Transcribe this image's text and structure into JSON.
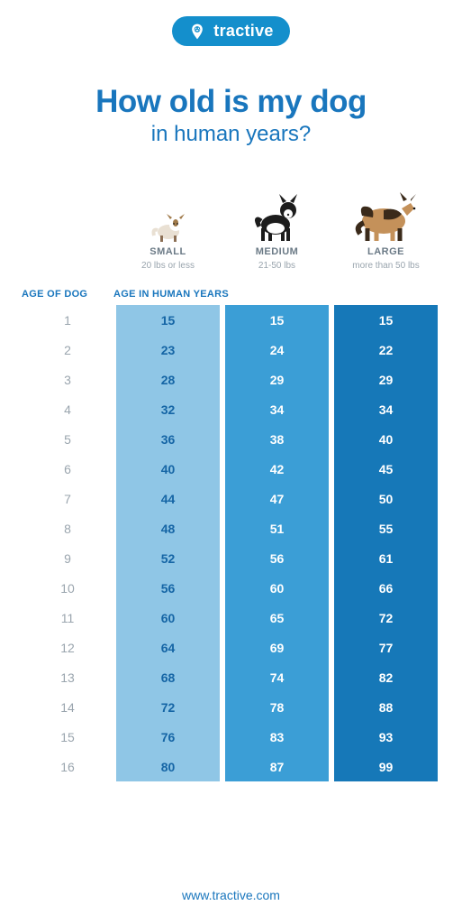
{
  "brand": {
    "name": "tractive",
    "bg": "#148fcc",
    "color": "#ffffff"
  },
  "headline": {
    "line1": "How old is my dog",
    "line2": "in human years?",
    "color": "#1976bd"
  },
  "sizes": [
    {
      "label": "SMALL",
      "sub": "20 lbs or less"
    },
    {
      "label": "MEDIUM",
      "sub": "21-50 lbs"
    },
    {
      "label": "LARGE",
      "sub": "more than 50 lbs"
    }
  ],
  "size_label_color": "#6b7a86",
  "size_sub_color": "#9aa5ae",
  "table": {
    "header_age": "AGE OF DOG",
    "header_human": "AGE IN HUMAN YEARS",
    "header_color": "#1976bd",
    "age_label_color": "#9aa5ae",
    "columns": [
      {
        "bg": "#8fc6e6",
        "text": "#1565a5"
      },
      {
        "bg": "#3b9ed6",
        "text": "#ffffff"
      },
      {
        "bg": "#1678b8",
        "text": "#ffffff"
      }
    ],
    "rows": [
      {
        "age": 1,
        "vals": [
          15,
          15,
          15
        ]
      },
      {
        "age": 2,
        "vals": [
          23,
          24,
          22
        ]
      },
      {
        "age": 3,
        "vals": [
          28,
          29,
          29
        ]
      },
      {
        "age": 4,
        "vals": [
          32,
          34,
          34
        ]
      },
      {
        "age": 5,
        "vals": [
          36,
          38,
          40
        ]
      },
      {
        "age": 6,
        "vals": [
          40,
          42,
          45
        ]
      },
      {
        "age": 7,
        "vals": [
          44,
          47,
          50
        ]
      },
      {
        "age": 8,
        "vals": [
          48,
          51,
          55
        ]
      },
      {
        "age": 9,
        "vals": [
          52,
          56,
          61
        ]
      },
      {
        "age": 10,
        "vals": [
          56,
          60,
          66
        ]
      },
      {
        "age": 11,
        "vals": [
          60,
          65,
          72
        ]
      },
      {
        "age": 12,
        "vals": [
          64,
          69,
          77
        ]
      },
      {
        "age": 13,
        "vals": [
          68,
          74,
          82
        ]
      },
      {
        "age": 14,
        "vals": [
          72,
          78,
          88
        ]
      },
      {
        "age": 15,
        "vals": [
          76,
          83,
          93
        ]
      },
      {
        "age": 16,
        "vals": [
          80,
          87,
          99
        ]
      }
    ]
  },
  "footer": {
    "text": "www.tractive.com",
    "color": "#1976bd"
  },
  "background_color": "#ffffff"
}
